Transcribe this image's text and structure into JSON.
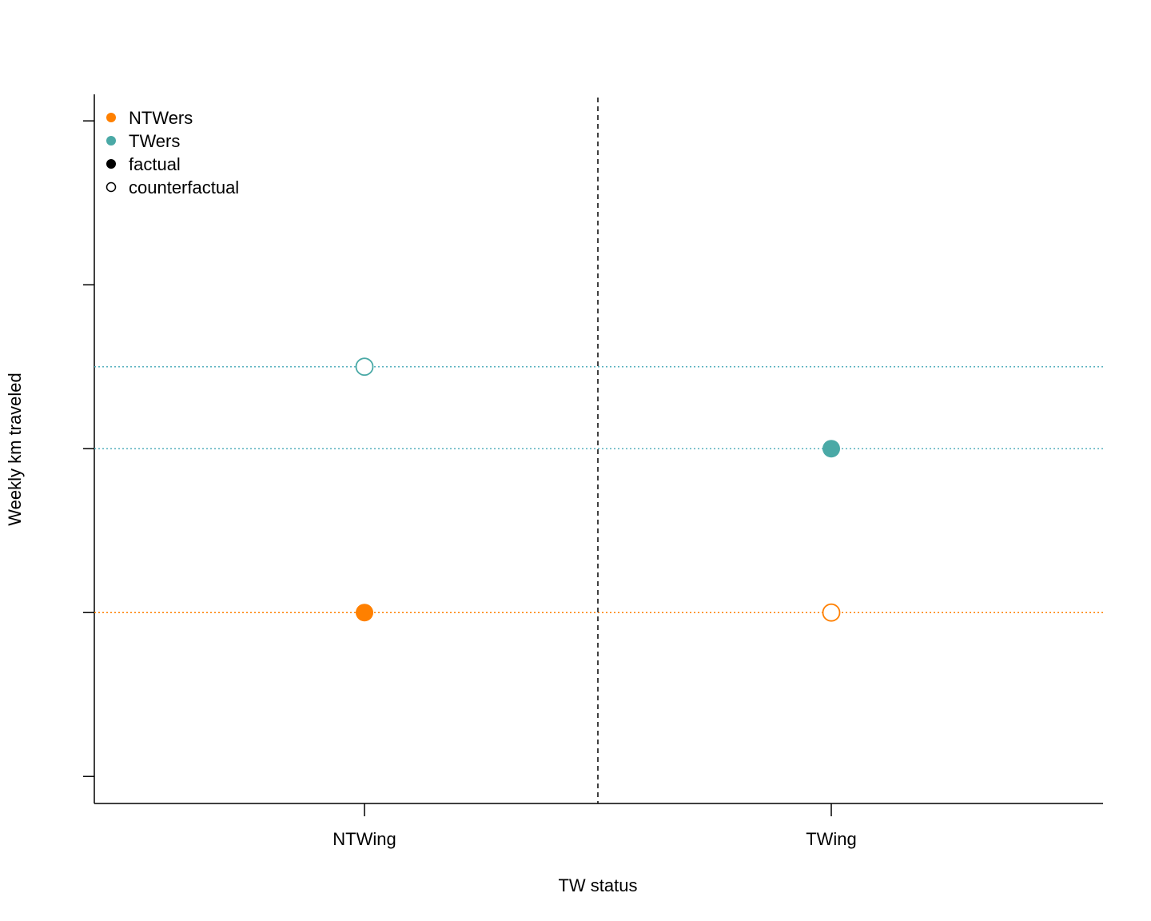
{
  "chart_data": {
    "type": "scatter",
    "xlabel": "TW status",
    "ylabel": "Weekly km traveled",
    "categories": [
      "NTWing",
      "TWing"
    ],
    "ylim": [
      0,
      4.3
    ],
    "y_ticks": [
      0.16,
      1.16,
      2.16,
      3.16,
      4.16
    ],
    "y_tick_labels_shown": false,
    "grid": false,
    "separator_line": "dashed vertical between categories",
    "reference_lines": "dotted horizontal at each point's value, colored by group",
    "legend_position": "top-left",
    "legend": [
      {
        "label": "NTWers",
        "marker": "filled",
        "color": "#ff8000"
      },
      {
        "label": "TWers",
        "marker": "filled",
        "color": "#4aa9a6"
      },
      {
        "label": "factual",
        "marker": "filled",
        "color": "#000000"
      },
      {
        "label": "counterfactual",
        "marker": "open",
        "color": "#000000"
      }
    ],
    "colors": {
      "NTWers": "#ff8000",
      "TWers": "#4aa9a6",
      "TWers_line": "#55b0be"
    },
    "series": [
      {
        "name": "NTWers",
        "points": [
          {
            "x": "NTWing",
            "y": 1.16,
            "kind": "factual"
          },
          {
            "x": "TWing",
            "y": 1.16,
            "kind": "counterfactual"
          }
        ]
      },
      {
        "name": "TWers",
        "points": [
          {
            "x": "NTWing",
            "y": 2.66,
            "kind": "counterfactual"
          },
          {
            "x": "TWing",
            "y": 2.16,
            "kind": "factual"
          }
        ]
      }
    ]
  }
}
